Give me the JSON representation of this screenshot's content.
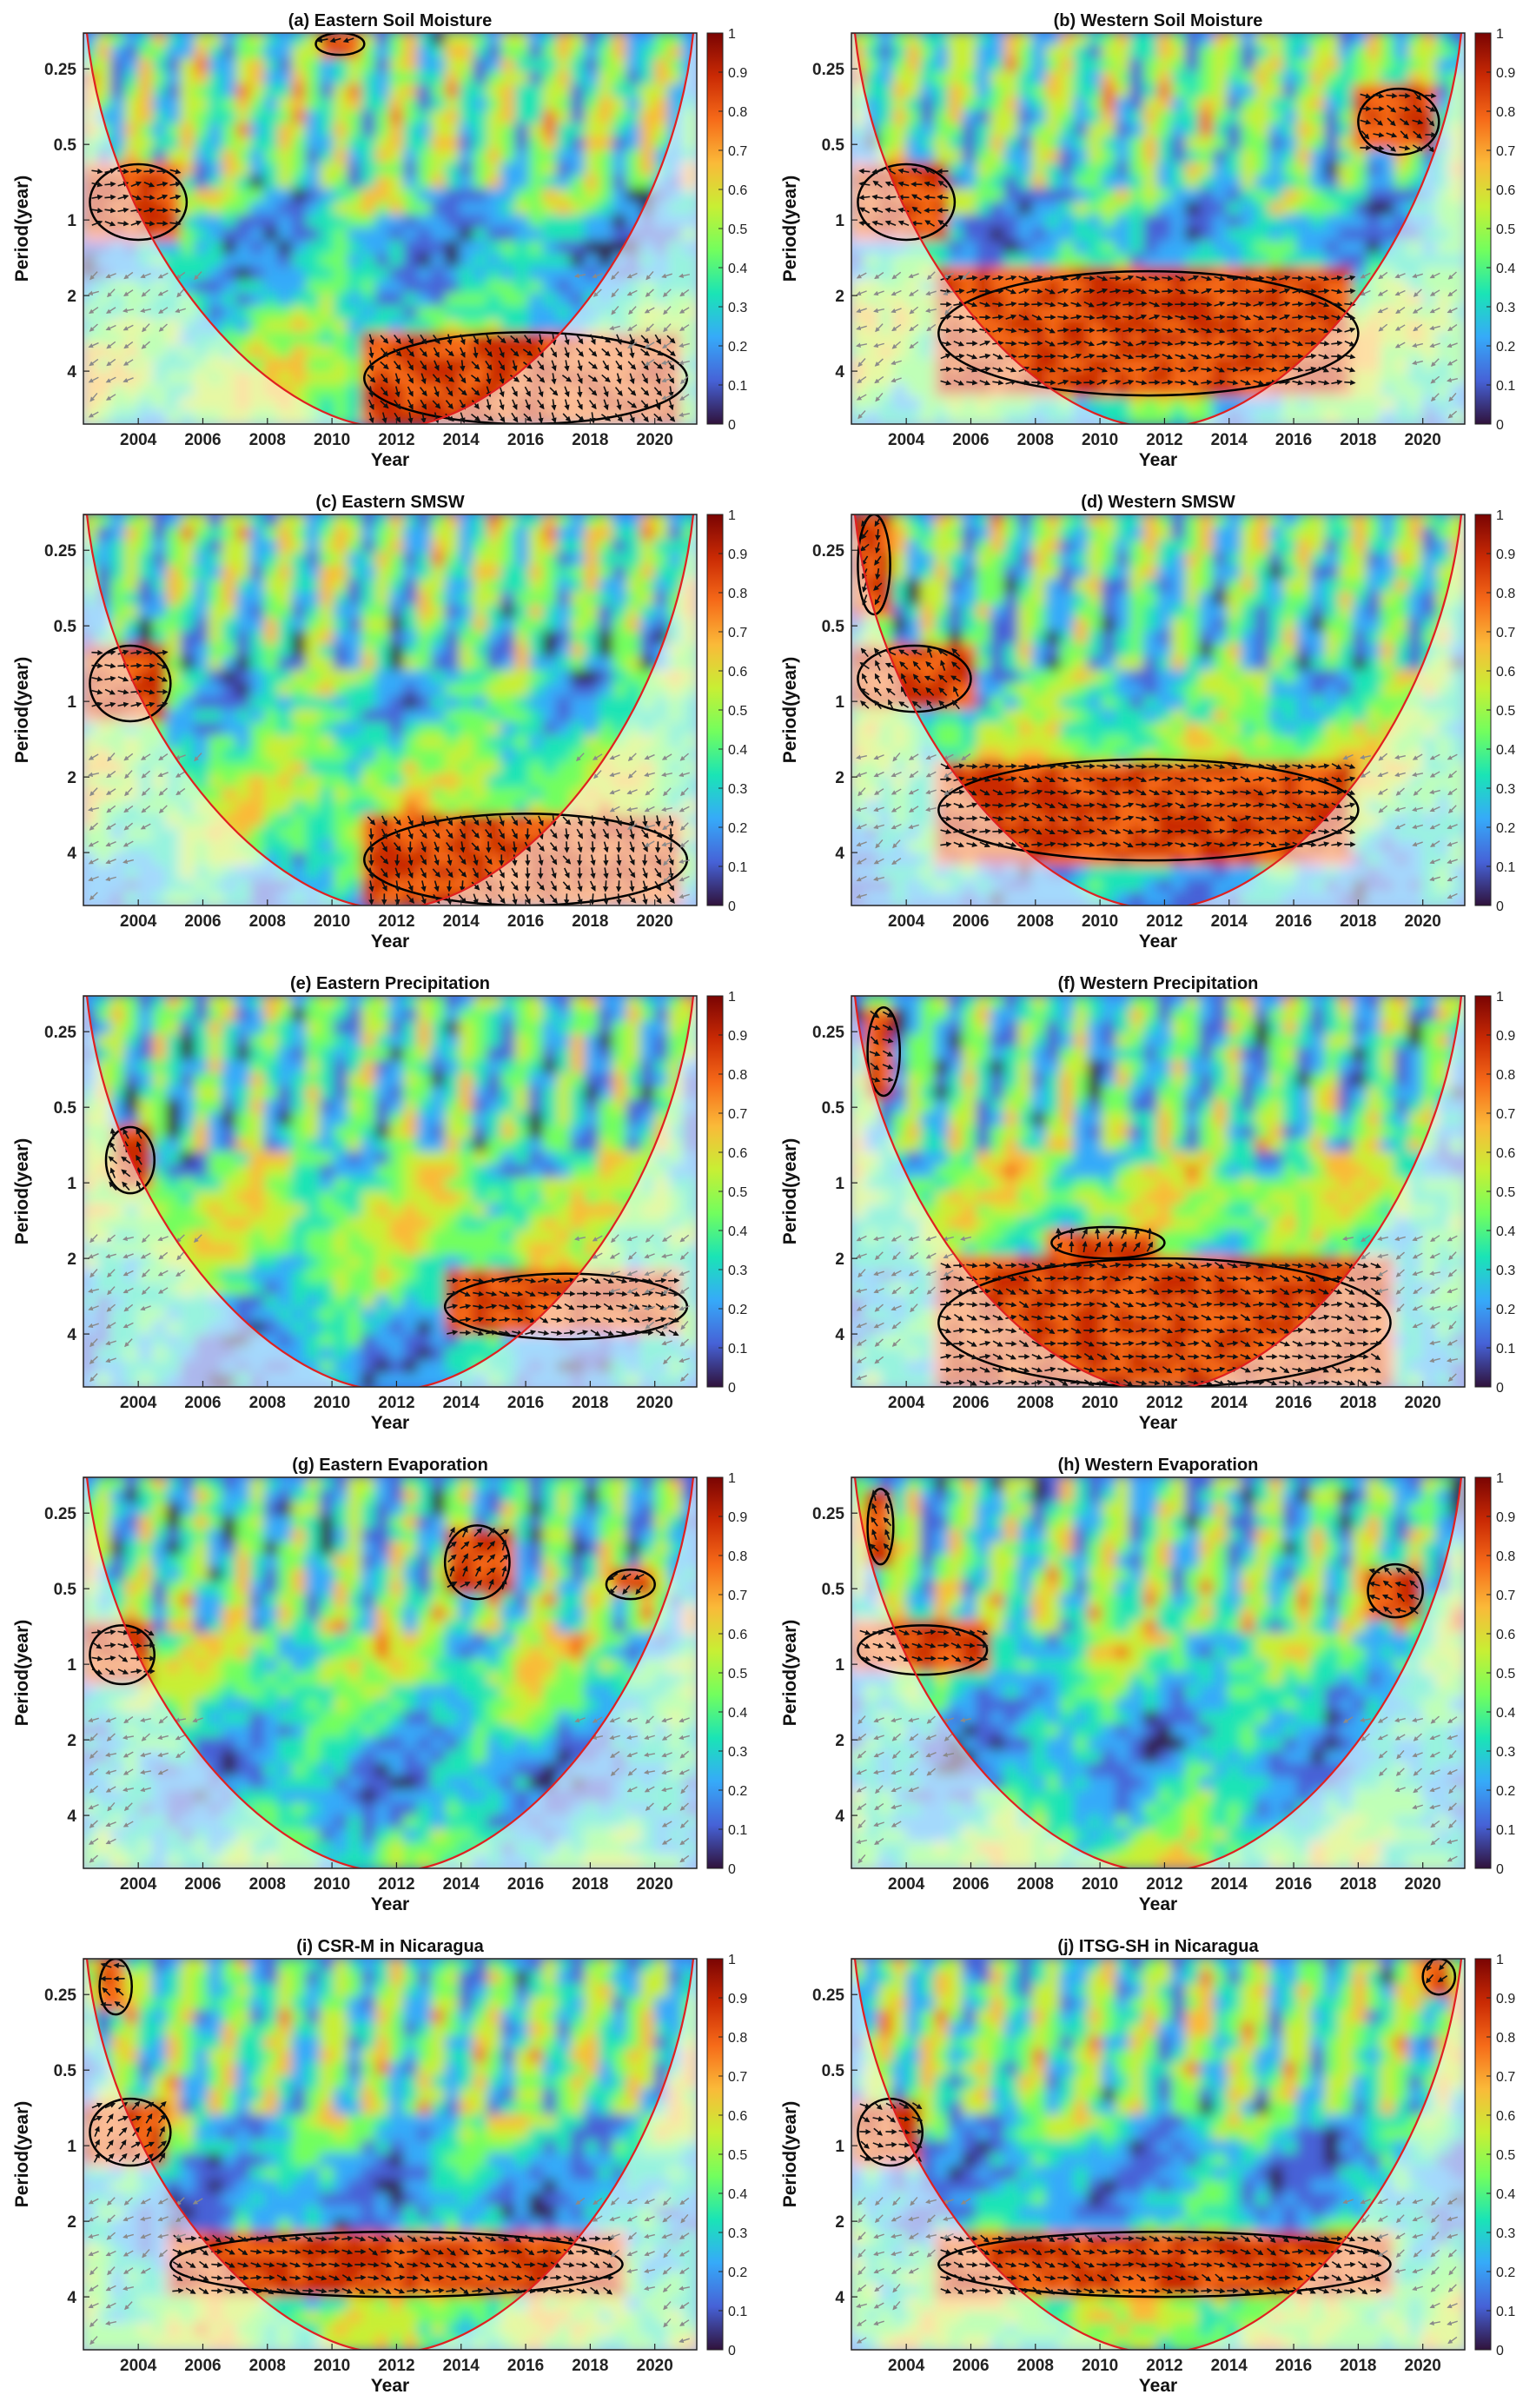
{
  "figure": {
    "colormap": [
      "#30123b",
      "#4662d7",
      "#36aaf9",
      "#1ae4b6",
      "#72fe5e",
      "#c8ef34",
      "#faba39",
      "#f66b19",
      "#ca2a04",
      "#7a0403"
    ],
    "coi_color": "#e02020",
    "arrow_color": "#111111",
    "outside_arrow_color": "#8a8a8a",
    "contour_color": "#000000"
  },
  "chart_data": [
    {
      "id": "a",
      "type": "heatmap",
      "title": "(a) Eastern Soil Moisture",
      "xlabel": "Year",
      "ylabel": "Period(year)",
      "xticks": [
        "2004",
        "2006",
        "2008",
        "2010",
        "2012",
        "2014",
        "2016",
        "2018",
        "2020"
      ],
      "yticks": [
        "0.25",
        "0.5",
        "1",
        "2",
        "4"
      ],
      "xlim": [
        2002.3,
        2021.3
      ],
      "ylim": [
        0.18,
        6.5
      ],
      "colorbar_ticks": [
        "0",
        "0.1",
        "0.2",
        "0.3",
        "0.4",
        "0.5",
        "0.6",
        "0.7",
        "0.8",
        "0.9",
        "1"
      ],
      "clim": [
        0,
        1
      ],
      "significant_regions": [
        {
          "x": [
            2002.5,
            2005.5
          ],
          "period": [
            0.6,
            1.2
          ]
        },
        {
          "x": [
            2011,
            2021
          ],
          "period": [
            2.8,
            6.5
          ]
        },
        {
          "x": [
            2009.5,
            2011
          ],
          "period": [
            0.18,
            0.22
          ]
        }
      ]
    },
    {
      "id": "b",
      "type": "heatmap",
      "title": "(b) Western Soil Moisture",
      "xlabel": "Year",
      "ylabel": "Period(year)",
      "xticks": [
        "2004",
        "2006",
        "2008",
        "2010",
        "2012",
        "2014",
        "2016",
        "2018",
        "2020"
      ],
      "yticks": [
        "0.25",
        "0.5",
        "1",
        "2",
        "4"
      ],
      "xlim": [
        2002.3,
        2021.3
      ],
      "ylim": [
        0.18,
        6.5
      ],
      "colorbar_ticks": [
        "0",
        "0.1",
        "0.2",
        "0.3",
        "0.4",
        "0.5",
        "0.6",
        "0.7",
        "0.8",
        "0.9",
        "1"
      ],
      "clim": [
        0,
        1
      ],
      "significant_regions": [
        {
          "x": [
            2005,
            2018
          ],
          "period": [
            1.6,
            5.0
          ]
        },
        {
          "x": [
            2002.5,
            2005.5
          ],
          "period": [
            0.6,
            1.2
          ]
        },
        {
          "x": [
            2018,
            2020.5
          ],
          "period": [
            0.3,
            0.55
          ]
        }
      ]
    },
    {
      "id": "c",
      "type": "heatmap",
      "title": "(c) Eastern SMSW",
      "xlabel": "Year",
      "ylabel": "Period(year)",
      "xticks": [
        "2004",
        "2006",
        "2008",
        "2010",
        "2012",
        "2014",
        "2016",
        "2018",
        "2020"
      ],
      "yticks": [
        "0.25",
        "0.5",
        "1",
        "2",
        "4"
      ],
      "xlim": [
        2002.3,
        2021.3
      ],
      "ylim": [
        0.18,
        6.5
      ],
      "colorbar_ticks": [
        "0",
        "0.1",
        "0.2",
        "0.3",
        "0.4",
        "0.5",
        "0.6",
        "0.7",
        "0.8",
        "0.9",
        "1"
      ],
      "clim": [
        0,
        1
      ],
      "significant_regions": [
        {
          "x": [
            2002.5,
            2005
          ],
          "period": [
            0.6,
            1.2
          ]
        },
        {
          "x": [
            2011,
            2021
          ],
          "period": [
            2.8,
            6.5
          ]
        }
      ]
    },
    {
      "id": "d",
      "type": "heatmap",
      "title": "(d) Western SMSW",
      "xlabel": "Year",
      "ylabel": "Period(year)",
      "xticks": [
        "2004",
        "2006",
        "2008",
        "2010",
        "2012",
        "2014",
        "2016",
        "2018",
        "2020"
      ],
      "yticks": [
        "0.25",
        "0.5",
        "1",
        "2",
        "4"
      ],
      "xlim": [
        2002.3,
        2021.3
      ],
      "ylim": [
        0.18,
        6.5
      ],
      "colorbar_ticks": [
        "0",
        "0.1",
        "0.2",
        "0.3",
        "0.4",
        "0.5",
        "0.6",
        "0.7",
        "0.8",
        "0.9",
        "1"
      ],
      "clim": [
        0,
        1
      ],
      "significant_regions": [
        {
          "x": [
            2005,
            2018
          ],
          "period": [
            1.7,
            4.3
          ]
        },
        {
          "x": [
            2002.5,
            2006
          ],
          "period": [
            0.6,
            1.1
          ]
        },
        {
          "x": [
            2002.5,
            2003.5
          ],
          "period": [
            0.18,
            0.45
          ]
        }
      ]
    },
    {
      "id": "e",
      "type": "heatmap",
      "title": "(e) Eastern Precipitation",
      "xlabel": "Year",
      "ylabel": "Period(year)",
      "xticks": [
        "2004",
        "2006",
        "2008",
        "2010",
        "2012",
        "2014",
        "2016",
        "2018",
        "2020"
      ],
      "yticks": [
        "0.25",
        "0.5",
        "1",
        "2",
        "4"
      ],
      "xlim": [
        2002.3,
        2021.3
      ],
      "ylim": [
        0.18,
        6.5
      ],
      "colorbar_ticks": [
        "0",
        "0.1",
        "0.2",
        "0.3",
        "0.4",
        "0.5",
        "0.6",
        "0.7",
        "0.8",
        "0.9",
        "1"
      ],
      "clim": [
        0,
        1
      ],
      "significant_regions": [
        {
          "x": [
            2013.5,
            2021
          ],
          "period": [
            2.3,
            4.2
          ]
        },
        {
          "x": [
            2003,
            2004.5
          ],
          "period": [
            0.6,
            1.1
          ]
        }
      ]
    },
    {
      "id": "f",
      "type": "heatmap",
      "title": "(f) Western Precipitation",
      "xlabel": "Year",
      "ylabel": "Period(year)",
      "xticks": [
        "2004",
        "2006",
        "2008",
        "2010",
        "2012",
        "2014",
        "2016",
        "2018",
        "2020"
      ],
      "yticks": [
        "0.25",
        "0.5",
        "1",
        "2",
        "4"
      ],
      "xlim": [
        2002.3,
        2021.3
      ],
      "ylim": [
        0.18,
        6.5
      ],
      "colorbar_ticks": [
        "0",
        "0.1",
        "0.2",
        "0.3",
        "0.4",
        "0.5",
        "0.6",
        "0.7",
        "0.8",
        "0.9",
        "1"
      ],
      "clim": [
        0,
        1
      ],
      "significant_regions": [
        {
          "x": [
            2005,
            2019
          ],
          "period": [
            2.0,
            6.5
          ]
        },
        {
          "x": [
            2008.5,
            2012
          ],
          "period": [
            1.5,
            2.0
          ]
        },
        {
          "x": [
            2002.8,
            2003.8
          ],
          "period": [
            0.2,
            0.45
          ]
        }
      ]
    },
    {
      "id": "g",
      "type": "heatmap",
      "title": "(g) Eastern Evaporation",
      "xlabel": "Year",
      "ylabel": "Period(year)",
      "xticks": [
        "2004",
        "2006",
        "2008",
        "2010",
        "2012",
        "2014",
        "2016",
        "2018",
        "2020"
      ],
      "yticks": [
        "0.25",
        "0.5",
        "1",
        "2",
        "4"
      ],
      "xlim": [
        2002.3,
        2021.3
      ],
      "ylim": [
        0.18,
        6.5
      ],
      "colorbar_ticks": [
        "0",
        "0.1",
        "0.2",
        "0.3",
        "0.4",
        "0.5",
        "0.6",
        "0.7",
        "0.8",
        "0.9",
        "1"
      ],
      "clim": [
        0,
        1
      ],
      "significant_regions": [
        {
          "x": [
            2002.5,
            2004.5
          ],
          "period": [
            0.7,
            1.2
          ]
        },
        {
          "x": [
            2013.5,
            2015.5
          ],
          "period": [
            0.28,
            0.55
          ]
        },
        {
          "x": [
            2018.5,
            2020
          ],
          "period": [
            0.42,
            0.55
          ]
        }
      ]
    },
    {
      "id": "h",
      "type": "heatmap",
      "title": "(h) Western Evaporation",
      "xlabel": "Year",
      "ylabel": "Period(year)",
      "xticks": [
        "2004",
        "2006",
        "2008",
        "2010",
        "2012",
        "2014",
        "2016",
        "2018",
        "2020"
      ],
      "yticks": [
        "0.25",
        "0.5",
        "1",
        "2",
        "4"
      ],
      "xlim": [
        2002.3,
        2021.3
      ],
      "ylim": [
        0.18,
        6.5
      ],
      "colorbar_ticks": [
        "0",
        "0.1",
        "0.2",
        "0.3",
        "0.4",
        "0.5",
        "0.6",
        "0.7",
        "0.8",
        "0.9",
        "1"
      ],
      "clim": [
        0,
        1
      ],
      "significant_regions": [
        {
          "x": [
            2002.5,
            2006.5
          ],
          "period": [
            0.7,
            1.1
          ]
        },
        {
          "x": [
            2002.8,
            2003.6
          ],
          "period": [
            0.2,
            0.4
          ]
        },
        {
          "x": [
            2018.3,
            2020
          ],
          "period": [
            0.4,
            0.65
          ]
        }
      ]
    },
    {
      "id": "i",
      "type": "heatmap",
      "title": "(i) CSR-M in Nicaragua",
      "xlabel": "Year",
      "ylabel": "Period(year)",
      "xticks": [
        "2004",
        "2006",
        "2008",
        "2010",
        "2012",
        "2014",
        "2016",
        "2018",
        "2020"
      ],
      "yticks": [
        "0.25",
        "0.5",
        "1",
        "2",
        "4"
      ],
      "xlim": [
        2002.3,
        2021.3
      ],
      "ylim": [
        0.18,
        6.5
      ],
      "colorbar_ticks": [
        "0",
        "0.1",
        "0.2",
        "0.3",
        "0.4",
        "0.5",
        "0.6",
        "0.7",
        "0.8",
        "0.9",
        "1"
      ],
      "clim": [
        0,
        1
      ],
      "significant_regions": [
        {
          "x": [
            2005,
            2019
          ],
          "period": [
            2.2,
            4.0
          ]
        },
        {
          "x": [
            2002.5,
            2005
          ],
          "period": [
            0.65,
            1.2
          ]
        },
        {
          "x": [
            2002.8,
            2003.8
          ],
          "period": [
            0.18,
            0.3
          ]
        }
      ]
    },
    {
      "id": "j",
      "type": "heatmap",
      "title": "(j) ITSG-SH in Nicaragua",
      "xlabel": "Year",
      "ylabel": "Period(year)",
      "xticks": [
        "2004",
        "2006",
        "2008",
        "2010",
        "2012",
        "2014",
        "2016",
        "2018",
        "2020"
      ],
      "yticks": [
        "0.25",
        "0.5",
        "1",
        "2",
        "4"
      ],
      "xlim": [
        2002.3,
        2021.3
      ],
      "ylim": [
        0.18,
        6.5
      ],
      "colorbar_ticks": [
        "0",
        "0.1",
        "0.2",
        "0.3",
        "0.4",
        "0.5",
        "0.6",
        "0.7",
        "0.8",
        "0.9",
        "1"
      ],
      "clim": [
        0,
        1
      ],
      "significant_regions": [
        {
          "x": [
            2005,
            2019
          ],
          "period": [
            2.2,
            4.0
          ]
        },
        {
          "x": [
            2002.5,
            2004.5
          ],
          "period": [
            0.65,
            1.2
          ]
        },
        {
          "x": [
            2020,
            2021
          ],
          "period": [
            0.18,
            0.25
          ]
        }
      ]
    }
  ]
}
